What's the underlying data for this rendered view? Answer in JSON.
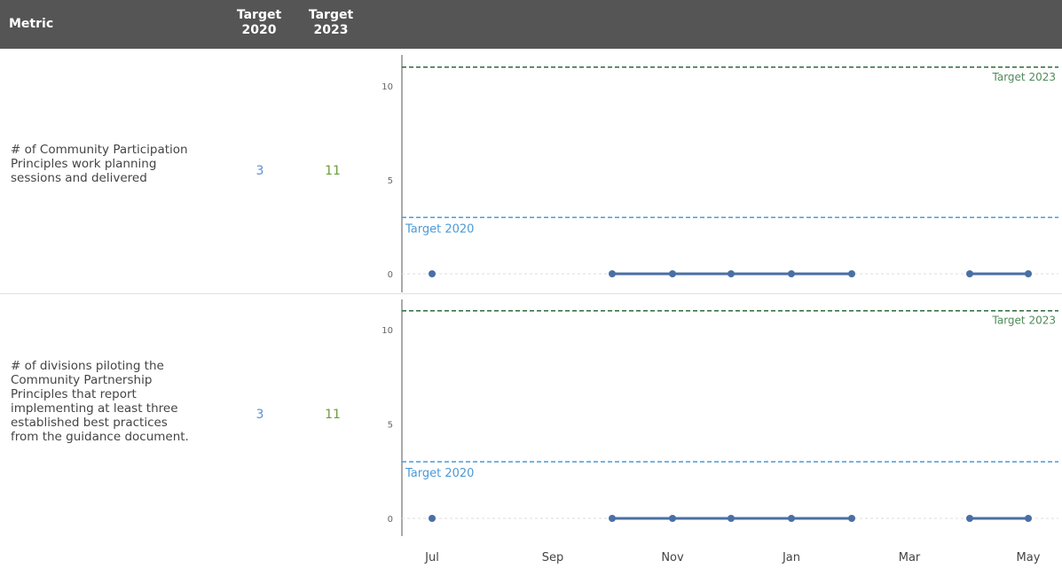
{
  "header": {
    "metric_label": "Metric",
    "target2020_label_line1": "Target",
    "target2020_label_line2": "2020",
    "target2023_label_line1": "Target",
    "target2023_label_line2": "2023"
  },
  "rows": [
    {
      "metric_lines": [
        "# of Community Participation",
        "Principles work planning",
        "sessions and delivered"
      ],
      "target_2020": "3",
      "target_2023": "11"
    },
    {
      "metric_lines": [
        "# of divisions piloting the",
        "Community Partnership",
        "Principles that report",
        "implementing at least three",
        "established best practices",
        "from the guidance document."
      ],
      "target_2020": "3",
      "target_2023": "11"
    }
  ],
  "chart_data": [
    {
      "type": "line",
      "x_ticks": [
        "Jul",
        "Sep",
        "Nov",
        "Jan",
        "Mar",
        "May"
      ],
      "y_ticks": [
        "0",
        "5",
        "10"
      ],
      "ylim": [
        0,
        11
      ],
      "reference_lines": [
        {
          "name": "Target 2020",
          "value": 3,
          "color": "#4a9ad8"
        },
        {
          "name": "Target 2023",
          "value": 11,
          "color": "#2e6b3a"
        }
      ],
      "series": [
        {
          "color": "#4a6fa5",
          "points": [
            {
              "x": "Jul",
              "y": 0
            },
            {
              "x": "Oct",
              "y": 0
            },
            {
              "x": "Nov",
              "y": 0
            },
            {
              "x": "Dec",
              "y": 0
            },
            {
              "x": "Jan",
              "y": 0
            },
            {
              "x": "Feb",
              "y": 0
            },
            {
              "x": "Apr",
              "y": 0
            },
            {
              "x": "May",
              "y": 0
            }
          ],
          "segments": [
            [
              0
            ],
            [
              1,
              2,
              3,
              4,
              5
            ],
            [
              6,
              7
            ]
          ]
        }
      ]
    },
    {
      "type": "line",
      "x_ticks": [
        "Jul",
        "Sep",
        "Nov",
        "Jan",
        "Mar",
        "May"
      ],
      "y_ticks": [
        "0",
        "5",
        "10"
      ],
      "ylim": [
        0,
        11
      ],
      "reference_lines": [
        {
          "name": "Target 2020",
          "value": 3,
          "color": "#4a9ad8"
        },
        {
          "name": "Target 2023",
          "value": 11,
          "color": "#2e6b3a"
        }
      ],
      "series": [
        {
          "color": "#4a6fa5",
          "points": [
            {
              "x": "Jul",
              "y": 0
            },
            {
              "x": "Oct",
              "y": 0
            },
            {
              "x": "Nov",
              "y": 0
            },
            {
              "x": "Dec",
              "y": 0
            },
            {
              "x": "Jan",
              "y": 0
            },
            {
              "x": "Feb",
              "y": 0
            },
            {
              "x": "Apr",
              "y": 0
            },
            {
              "x": "May",
              "y": 0
            }
          ],
          "segments": [
            [
              0
            ],
            [
              1,
              2,
              3,
              4,
              5
            ],
            [
              6,
              7
            ]
          ]
        }
      ]
    }
  ]
}
